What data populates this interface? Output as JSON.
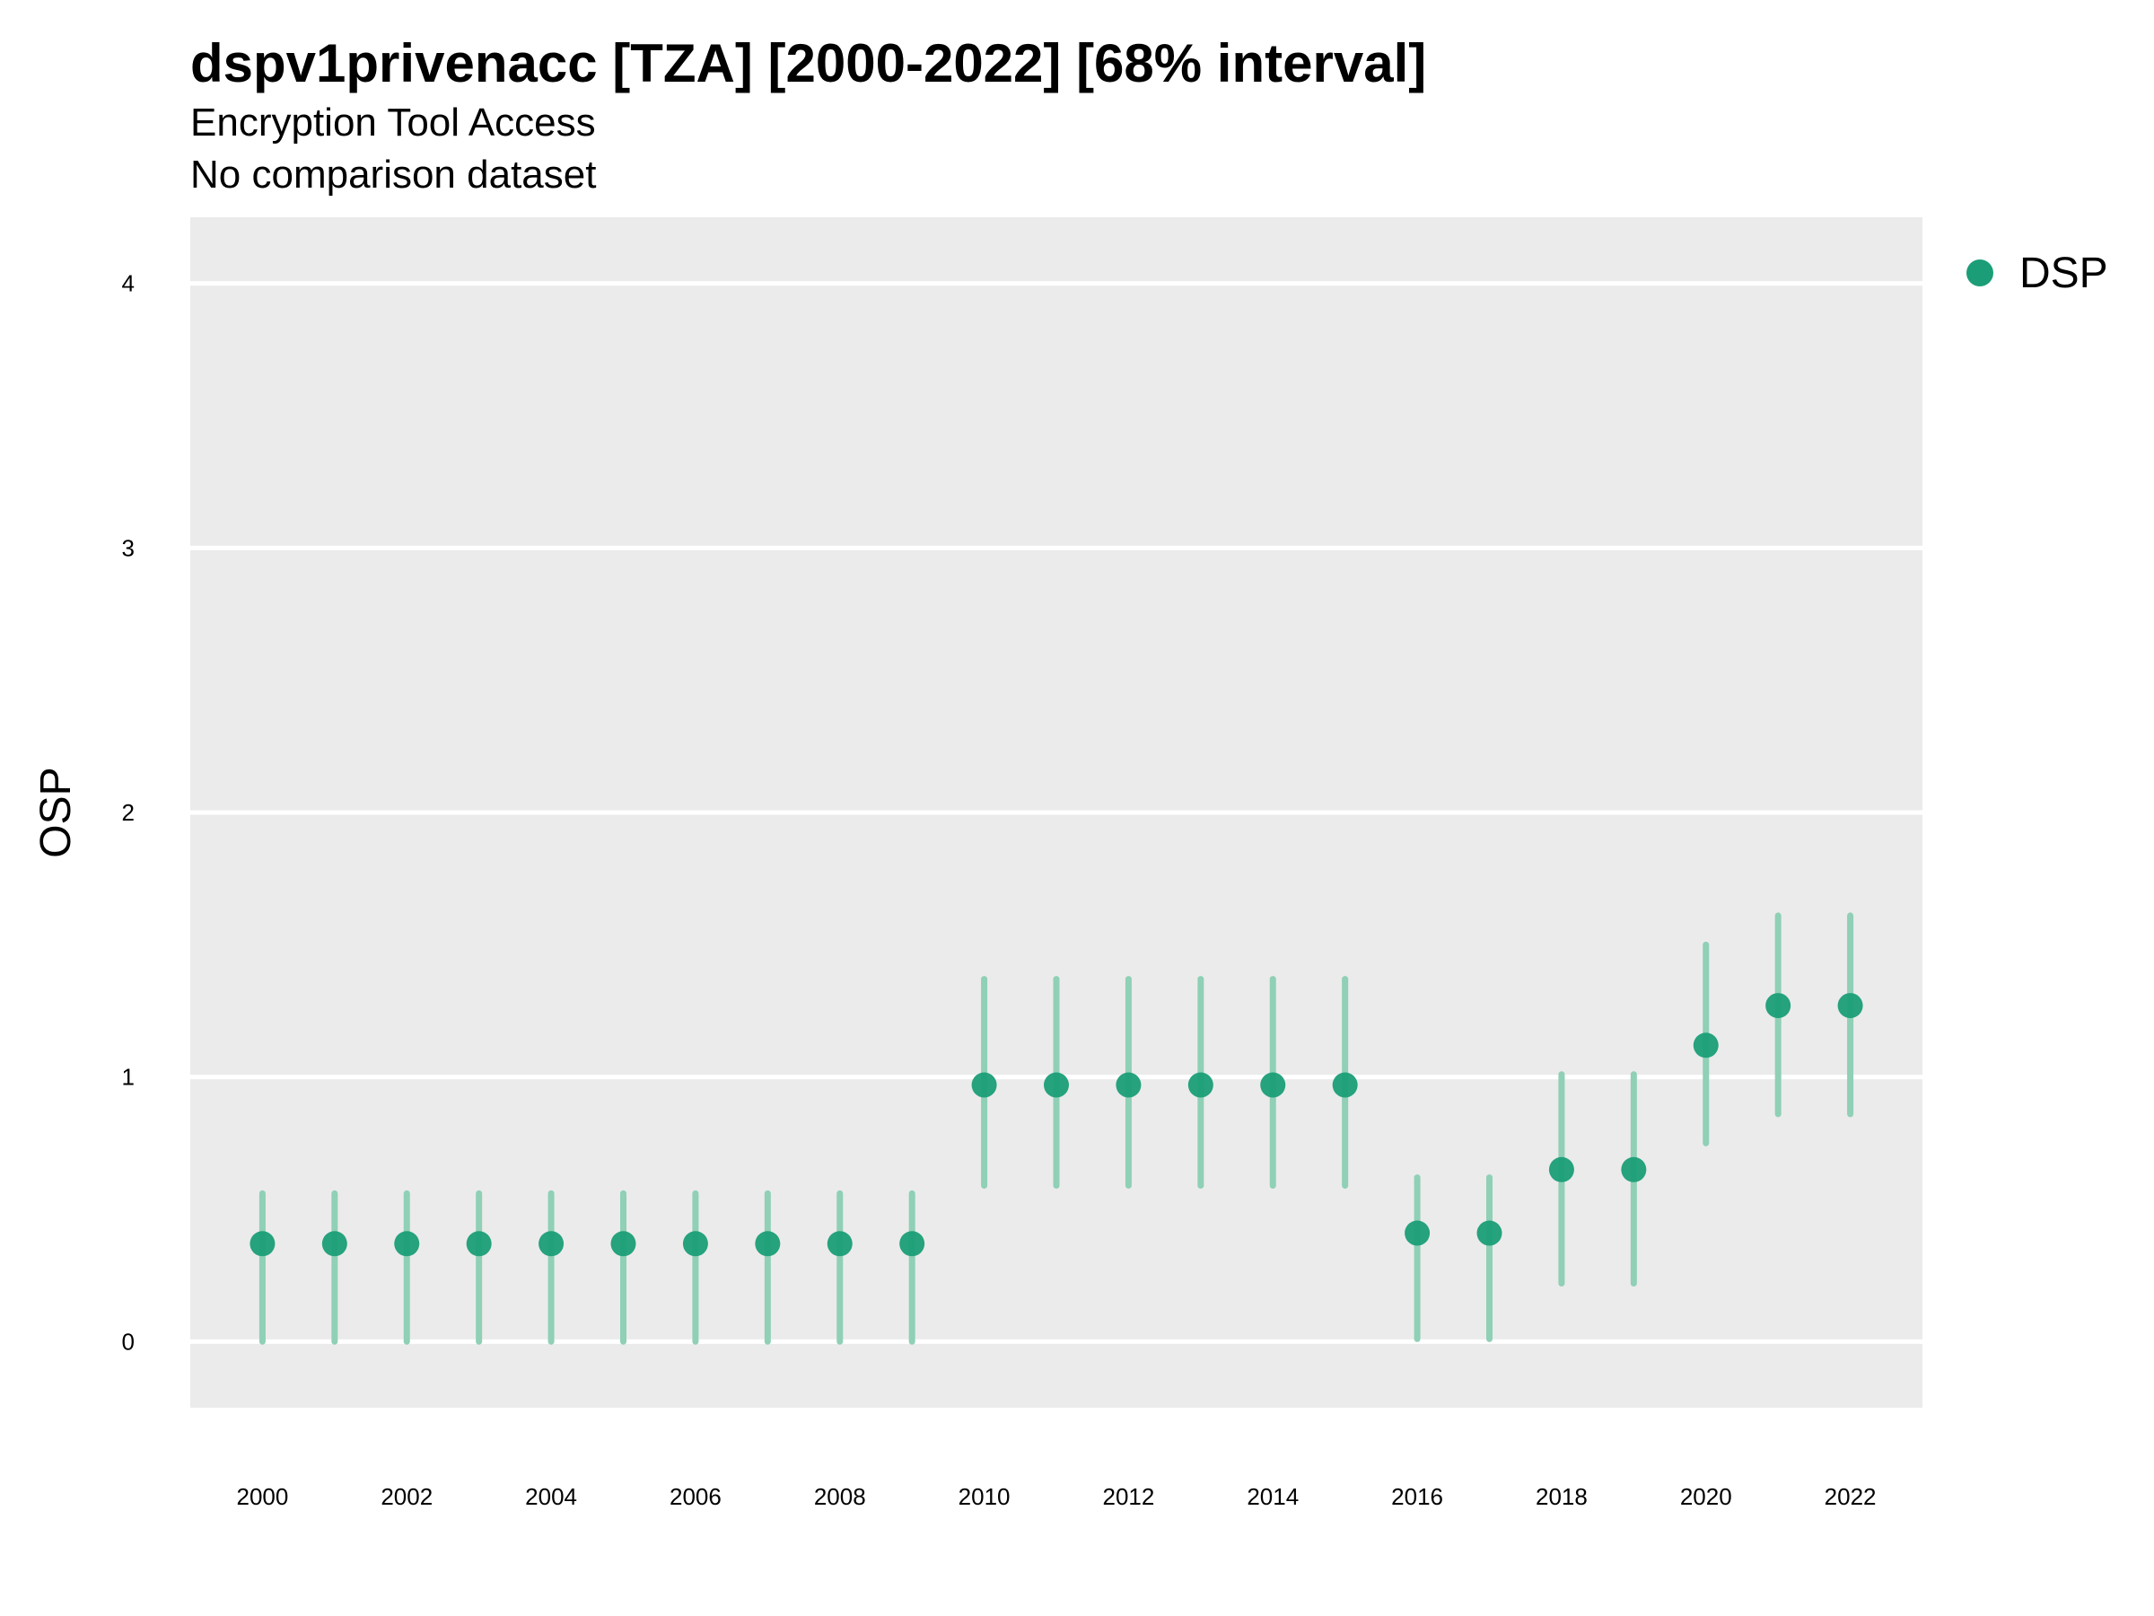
{
  "chart_data": {
    "type": "scatter",
    "title": "dspv1privenacc [TZA] [2000-2022] [68% interval]",
    "subtitle": [
      "Encryption Tool Access",
      "No comparison dataset"
    ],
    "ylabel": "OSP",
    "xlabel": "",
    "ylim": [
      -0.25,
      4.25
    ],
    "xlim": [
      1999,
      2023
    ],
    "y_ticks": [
      0,
      1,
      2,
      3,
      4
    ],
    "x_ticks": [
      2000,
      2002,
      2004,
      2006,
      2008,
      2010,
      2012,
      2014,
      2016,
      2018,
      2020,
      2022
    ],
    "grid": true,
    "legend": {
      "position": "right",
      "entries": [
        "DSP"
      ]
    },
    "colors": {
      "point": "#1b9e77",
      "interval": "#8fd0b6",
      "panel": "#ebebeb",
      "grid": "#ffffff"
    },
    "series": [
      {
        "name": "DSP",
        "x": [
          2000,
          2001,
          2002,
          2003,
          2004,
          2005,
          2006,
          2007,
          2008,
          2009,
          2010,
          2011,
          2012,
          2013,
          2014,
          2015,
          2016,
          2017,
          2018,
          2019,
          2020,
          2021,
          2022
        ],
        "y": [
          0.37,
          0.37,
          0.37,
          0.37,
          0.37,
          0.37,
          0.37,
          0.37,
          0.37,
          0.37,
          0.97,
          0.97,
          0.97,
          0.97,
          0.97,
          0.97,
          0.41,
          0.41,
          0.65,
          0.65,
          1.12,
          1.27,
          1.27
        ],
        "lower": [
          0.0,
          0.0,
          0.0,
          0.0,
          0.0,
          0.0,
          0.0,
          0.0,
          0.0,
          0.0,
          0.59,
          0.59,
          0.59,
          0.59,
          0.59,
          0.59,
          0.01,
          0.01,
          0.22,
          0.22,
          0.75,
          0.86,
          0.86
        ],
        "upper": [
          0.56,
          0.56,
          0.56,
          0.56,
          0.56,
          0.56,
          0.56,
          0.56,
          0.56,
          0.56,
          1.37,
          1.37,
          1.37,
          1.37,
          1.37,
          1.37,
          0.62,
          0.62,
          1.01,
          1.01,
          1.5,
          1.61,
          1.61
        ]
      }
    ]
  }
}
